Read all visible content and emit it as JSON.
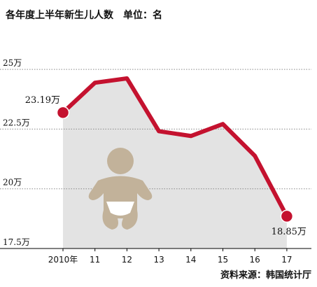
{
  "chart_data": {
    "type": "line",
    "title": "各年度上半年新生儿人数　单位：名",
    "categories": [
      "2010年",
      "11",
      "12",
      "13",
      "14",
      "15",
      "16",
      "17"
    ],
    "series": [
      {
        "name": null,
        "color": "#c4122f",
        "values": [
          23.19,
          24.44,
          24.62,
          22.41,
          22.21,
          22.71,
          21.38,
          18.85
        ]
      }
    ],
    "value_labels": [
      "23.19万",
      null,
      null,
      null,
      null,
      null,
      null,
      "18.85万"
    ],
    "ylim": [
      17.5,
      25.5
    ],
    "yticks": [
      {
        "value": 17.5,
        "label": "17.5万"
      },
      {
        "value": 20,
        "label": "20万"
      },
      {
        "value": 22.5,
        "label": "22.5万"
      },
      {
        "value": 25,
        "label": "25万"
      }
    ],
    "grid": true,
    "annotations": [
      "资料来源：韩国统计厅"
    ]
  }
}
